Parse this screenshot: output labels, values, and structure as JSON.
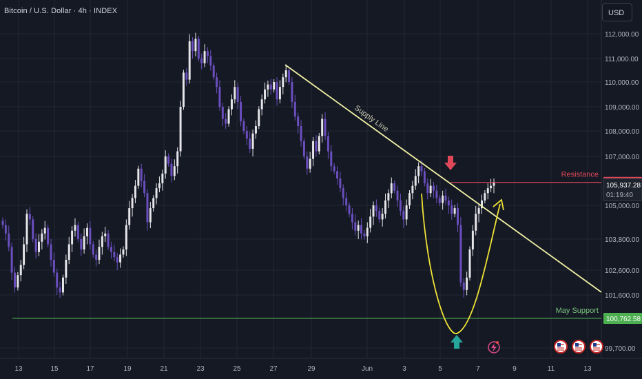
{
  "header": {
    "title": "Bitcoin / U.S. Dollar · 4h · INDEX",
    "currency_button": "USD"
  },
  "annotations": {
    "supply_line_label": "Supply Line",
    "resistance_label": "Resistance",
    "support_label": "May Support"
  },
  "price_tags": {
    "resistance": "105,938.20",
    "current_price": "105,937.28",
    "countdown": "01:19:40",
    "support": "100,762.58"
  },
  "colors": {
    "background": "#151924",
    "grid": "#232735",
    "bull_candle": "#e6e6ea",
    "bear_candle": "#6b4fbf",
    "supply_line": "#f2f2a5",
    "resistance": "#e0485a",
    "support": "#4caf50",
    "curve": "#f0e337",
    "down_arrow": "#e0485a",
    "up_arrow": "#26a69a"
  },
  "chart_data": {
    "type": "candlestick",
    "title": "Bitcoin / U.S. Dollar · 4h · INDEX",
    "y_ticks": [
      112000,
      111000,
      110000,
      109000,
      108000,
      107000,
      105000,
      103800,
      102600,
      101600,
      99700
    ],
    "y_tick_labels": [
      "112,000.00",
      "111,000.00",
      "110,000.00",
      "109,000.00",
      "108,000.00",
      "107,000.00",
      "105,000.00",
      "103,800.00",
      "102,600.00",
      "101,600.00",
      "99,700.00"
    ],
    "x_ticks": [
      "13",
      "15",
      "17",
      "19",
      "21",
      "23",
      "25",
      "27",
      "29",
      "Jun",
      "3",
      "5",
      "7",
      "9",
      "11",
      "13"
    ],
    "resistance_price": 105938.2,
    "support_price": 100762.58,
    "current_price": 105937.28,
    "close_series": [
      104300,
      104000,
      103500,
      102500,
      101900,
      102400,
      102800,
      103600,
      104700,
      104500,
      103800,
      103300,
      103700,
      104000,
      104200,
      103600,
      103000,
      102500,
      101900,
      101700,
      102300,
      103000,
      103600,
      104100,
      104300,
      103800,
      103400,
      103900,
      104200,
      103600,
      103200,
      103000,
      103500,
      103900,
      104000,
      103500,
      103300,
      103100,
      102900,
      103200,
      103400,
      104300,
      104900,
      105300,
      105800,
      106500,
      106000,
      105500,
      104400,
      104900,
      105300,
      105700,
      105900,
      106300,
      107000,
      106700,
      106200,
      106600,
      107200,
      109000,
      110400,
      110100,
      111700,
      111300,
      111800,
      111000,
      110800,
      111300,
      111100,
      110700,
      110200,
      109800,
      109000,
      108500,
      108300,
      108900,
      109300,
      109800,
      109200,
      108400,
      108000,
      107700,
      107300,
      107900,
      108200,
      108900,
      109300,
      109700,
      109900,
      109700,
      110000,
      109300,
      109800,
      110200,
      110500,
      110000,
      109200,
      108600,
      108200,
      107600,
      107000,
      106500,
      106900,
      107600,
      107200,
      107800,
      108500,
      107800,
      107200,
      106600,
      106400,
      106100,
      105700,
      105300,
      105000,
      104700,
      104400,
      104100,
      104300,
      104000,
      103900,
      104200,
      104600,
      105000,
      104800,
      104500,
      104700,
      105200,
      105500,
      105900,
      105600,
      105200,
      104800,
      104500,
      105000,
      105500,
      105800,
      106200,
      106600,
      106400,
      105900,
      105500,
      105800,
      105600,
      105300,
      105100,
      105400,
      105200,
      105000,
      104700,
      104900,
      104300,
      102100,
      101800,
      102300,
      103400,
      104100,
      104700,
      104900,
      105200,
      105500,
      105700,
      105800,
      105937
    ],
    "annotations": [
      "Supply Line",
      "Resistance",
      "May Support"
    ]
  }
}
